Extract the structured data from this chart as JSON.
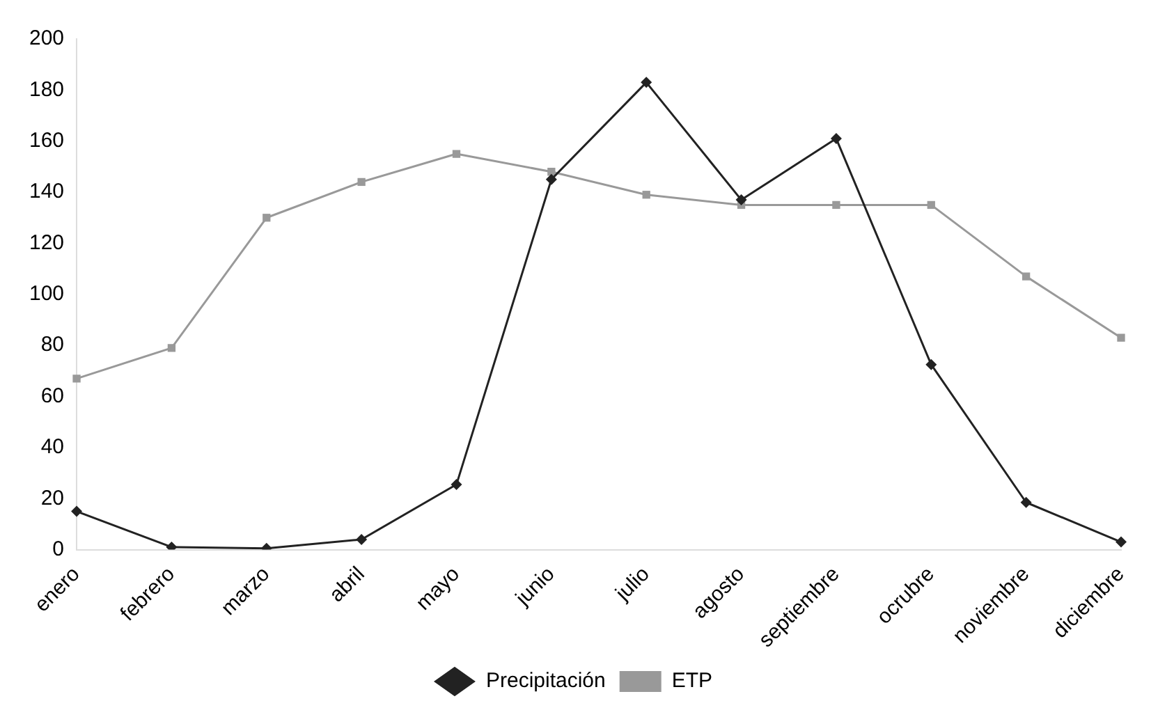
{
  "chart_data": {
    "type": "line",
    "categories": [
      "enero",
      "febrero",
      "marzo",
      "abril",
      "mayo",
      "junio",
      "julio",
      "agosto",
      "septiembre",
      "ocrubre",
      "noviembre",
      "diciembre"
    ],
    "series": [
      {
        "name": "Precipitación",
        "color": "#222222",
        "marker": "diamond",
        "values": [
          15,
          1,
          0.5,
          4,
          25.5,
          145,
          183,
          137,
          161,
          72.5,
          18.5,
          3
        ]
      },
      {
        "name": "ETP",
        "color": "#999999",
        "marker": "square",
        "values": [
          67,
          79,
          130,
          144,
          155,
          148,
          139,
          135,
          135,
          135,
          107,
          83
        ]
      }
    ],
    "ylim": [
      0,
      200
    ],
    "yticks": [
      0,
      20,
      40,
      60,
      80,
      100,
      120,
      140,
      160,
      180,
      200
    ],
    "grid": false,
    "legend": "bottom"
  }
}
